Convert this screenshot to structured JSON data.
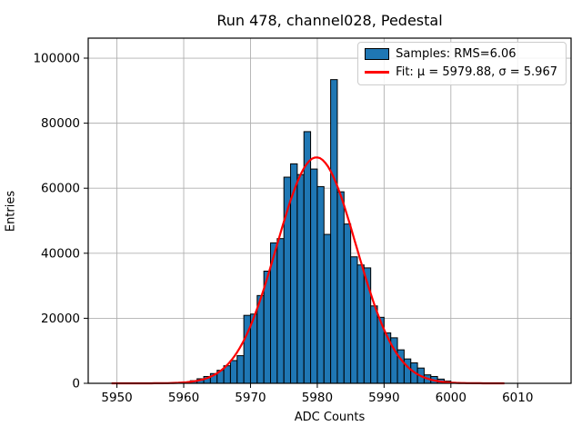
{
  "chart_data": {
    "type": "bar",
    "subtype": "histogram-with-gaussian-fit",
    "title": "Run 478, channel028, Pedestal",
    "xlabel": "ADC Counts",
    "ylabel": "Entries",
    "xlim": [
      5945.7,
      6018.0
    ],
    "ylim": [
      0,
      106150
    ],
    "xticks": [
      5950,
      5960,
      5970,
      5980,
      5990,
      6000,
      6010
    ],
    "yticks": [
      0,
      20000,
      40000,
      60000,
      80000,
      100000
    ],
    "grid": true,
    "grid_color": "#b0b0b0",
    "bar_color": "#1f77b4",
    "bar_edge_color": "#000000",
    "bin_start": 5961,
    "bin_width": 1,
    "counts": [
      800,
      1400,
      2100,
      3000,
      4000,
      5400,
      7000,
      8500,
      20900,
      21300,
      27000,
      34500,
      43200,
      44500,
      63400,
      67500,
      64200,
      77400,
      65900,
      60500,
      45800,
      93400,
      58900,
      49000,
      38900,
      36400,
      35500,
      23800,
      20300,
      15500,
      14000,
      10300,
      7500,
      6300,
      4700,
      2600,
      2100,
      1300,
      700
    ],
    "fit": {
      "shape": "gaussian",
      "mu": 5979.88,
      "sigma": 5.967,
      "amplitude": 69500,
      "color": "#ff0000",
      "x_range": [
        5949.2,
        6008.0
      ]
    },
    "legend": {
      "position": "upper right",
      "entries": [
        {
          "swatch": "bar",
          "label": "Samples: RMS=6.06"
        },
        {
          "swatch": "line",
          "label": "Fit: μ = 5979.88, σ = 5.967"
        }
      ]
    }
  }
}
